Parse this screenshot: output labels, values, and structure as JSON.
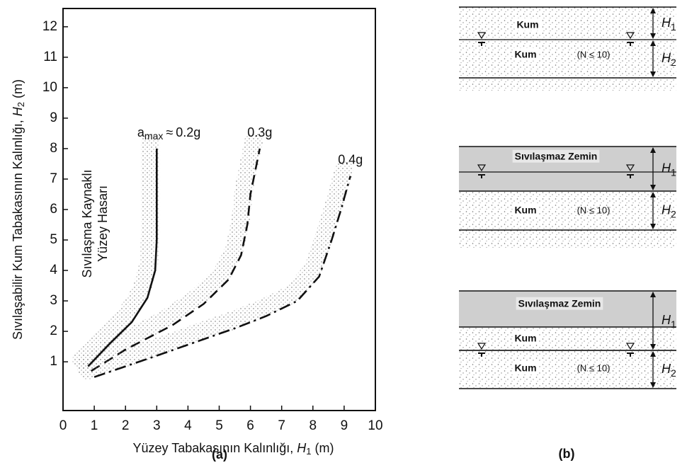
{
  "chart_data": {
    "type": "line",
    "xlabel": {
      "text": "Yüzey Tabakasının Kalınlığı,",
      "var": "H",
      "sub": "1",
      "unit": "(m)"
    },
    "ylabel": {
      "text": "Sıvılaşabilir Kum Tabakasının Kalınlığı,",
      "var": "H",
      "sub": "2",
      "unit": "(m)"
    },
    "xlim": [
      0,
      10
    ],
    "ylim": [
      -0.6,
      12.6
    ],
    "xticks": [
      0,
      1,
      2,
      3,
      4,
      5,
      6,
      7,
      8,
      9,
      10
    ],
    "yticks": [
      1,
      2,
      3,
      4,
      5,
      6,
      7,
      8,
      9,
      10,
      11,
      12
    ],
    "label_prefix": "a",
    "label_prefix_sub": "max",
    "label_prefix_sym": "≈",
    "annotation": [
      "Sıvılaşma Kaynaklı",
      "Yüzey Hasarı"
    ],
    "panel_label": "(a)",
    "series": [
      {
        "name": "0.2g",
        "color": "#111111",
        "style": "solid",
        "x": [
          0.8,
          1.5,
          2.2,
          2.7,
          2.95,
          3.0,
          3.0,
          3.0,
          3.0
        ],
        "values": [
          0.85,
          1.6,
          2.3,
          3.1,
          4.0,
          5.0,
          6.0,
          7.0,
          8.0
        ]
      },
      {
        "name": "0.3g",
        "color": "#111111",
        "style": "dashed",
        "x": [
          0.9,
          2.0,
          3.5,
          4.5,
          5.3,
          5.7,
          5.9,
          6.0,
          6.2,
          6.3
        ],
        "values": [
          0.7,
          1.4,
          2.2,
          2.9,
          3.7,
          4.5,
          5.5,
          6.5,
          7.5,
          8.0
        ]
      },
      {
        "name": "0.4g",
        "color": "#111111",
        "style": "dashdot",
        "x": [
          1.0,
          3.0,
          5.5,
          6.5,
          7.5,
          8.2,
          8.6,
          8.9,
          9.2
        ],
        "values": [
          0.5,
          1.2,
          2.1,
          2.5,
          3.0,
          3.8,
          5.0,
          6.0,
          7.1
        ]
      }
    ]
  },
  "diagrams": {
    "panel_label": "(b)",
    "items": [
      {
        "layers": [
          {
            "label": "Kum"
          },
          {
            "label": "Kum",
            "note": "(N ≤ 10)"
          }
        ],
        "dims": [
          {
            "var": "H",
            "sub": "1"
          },
          {
            "var": "H",
            "sub": "2"
          }
        ]
      },
      {
        "layers": [
          {
            "label": "Sıvılaşmaz Zemin"
          },
          {
            "label": "Kum",
            "note": "(N ≤ 10)"
          }
        ],
        "dims": [
          {
            "var": "H",
            "sub": "1"
          },
          {
            "var": "H",
            "sub": "2"
          }
        ]
      },
      {
        "layers": [
          {
            "label": "Sıvılaşmaz Zemin"
          },
          {
            "label": "Kum"
          },
          {
            "label": "Kum",
            "note": "(N ≤ 10)"
          }
        ],
        "dims": [
          {
            "var": "H",
            "sub": "1"
          },
          {
            "var": "H",
            "sub": "2"
          }
        ]
      }
    ]
  }
}
